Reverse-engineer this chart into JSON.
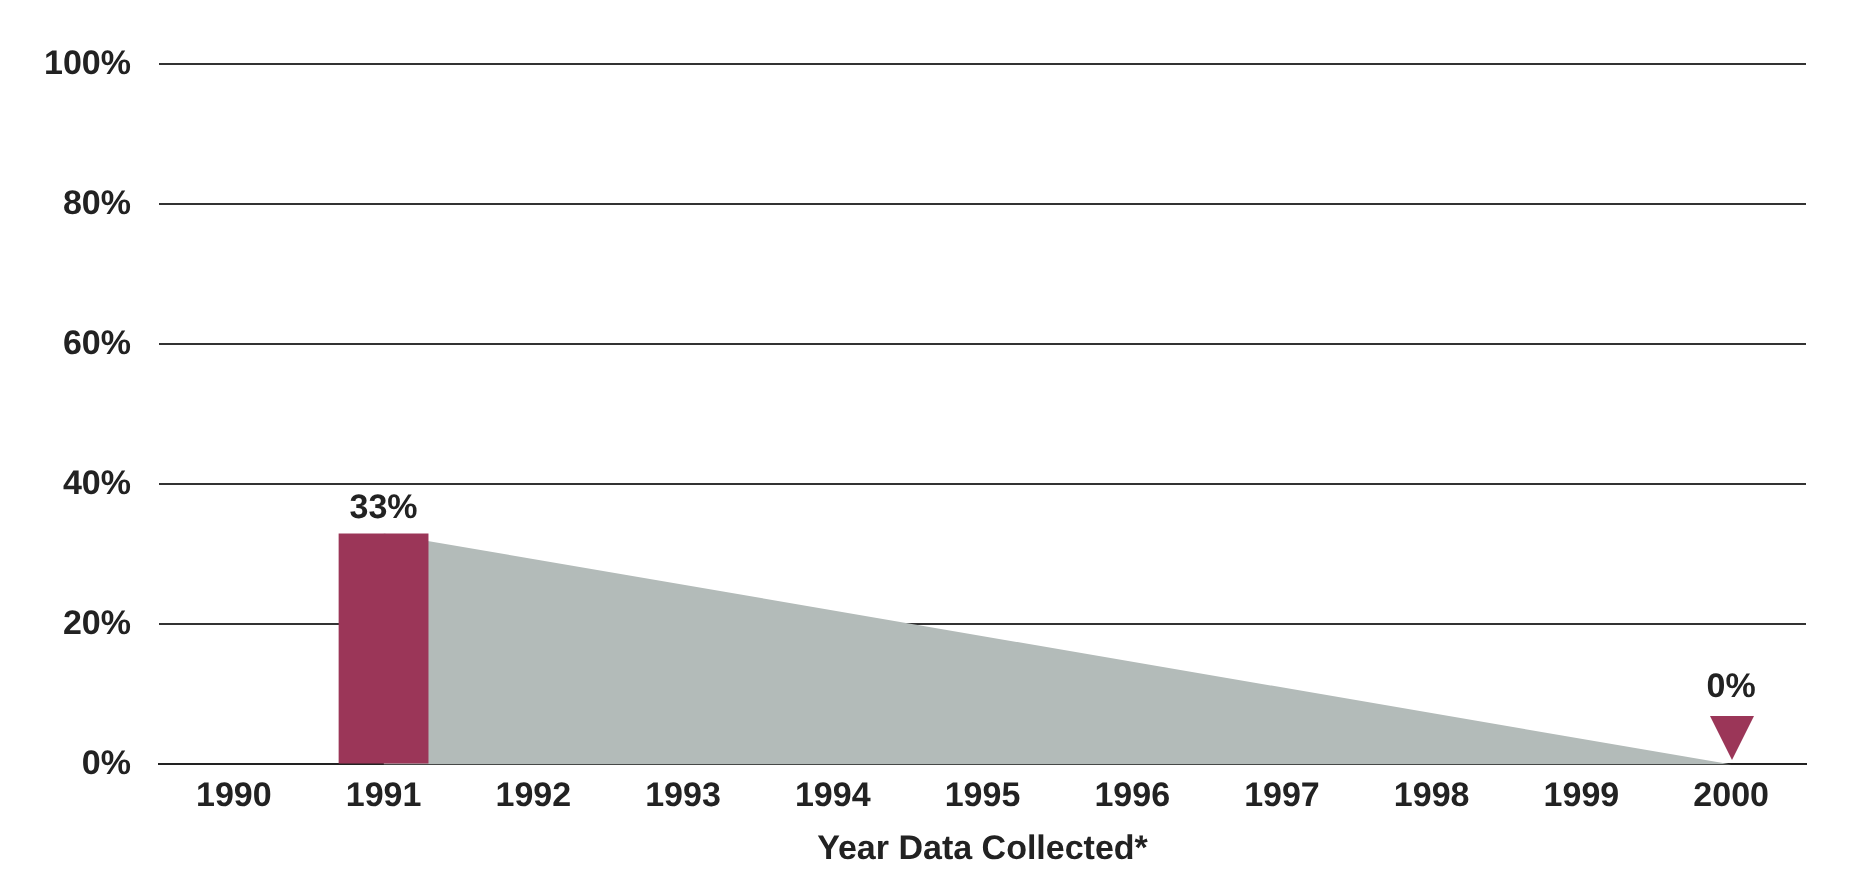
{
  "chart_data": {
    "type": "bar",
    "xlabel": "Year Data Collected*",
    "categories": [
      "1990",
      "1991",
      "1992",
      "1993",
      "1994",
      "1995",
      "1996",
      "1997",
      "1998",
      "1999",
      "2000"
    ],
    "series": [
      {
        "type": "area",
        "color": "#b3bbb9",
        "values": [
          null,
          33,
          null,
          null,
          null,
          null,
          null,
          null,
          null,
          null,
          0
        ],
        "value_labels": [
          null,
          null,
          null,
          null,
          null,
          null,
          null,
          null,
          null,
          null,
          "0%"
        ]
      },
      {
        "color": "#9b3658",
        "values": [
          null,
          33,
          null,
          null,
          null,
          null,
          null,
          null,
          null,
          null,
          null
        ],
        "value_labels": [
          null,
          "33%",
          null,
          null,
          null,
          null,
          null,
          null,
          null,
          null,
          null
        ]
      }
    ],
    "ylim": [
      0,
      100
    ],
    "yticks": [
      {
        "value": 0,
        "label": "0%"
      },
      {
        "value": 20,
        "label": "20%"
      },
      {
        "value": 40,
        "label": "40%"
      },
      {
        "value": 60,
        "label": "60%"
      },
      {
        "value": 80,
        "label": "80%"
      },
      {
        "value": 100,
        "label": "100%"
      }
    ],
    "grid": "y"
  }
}
